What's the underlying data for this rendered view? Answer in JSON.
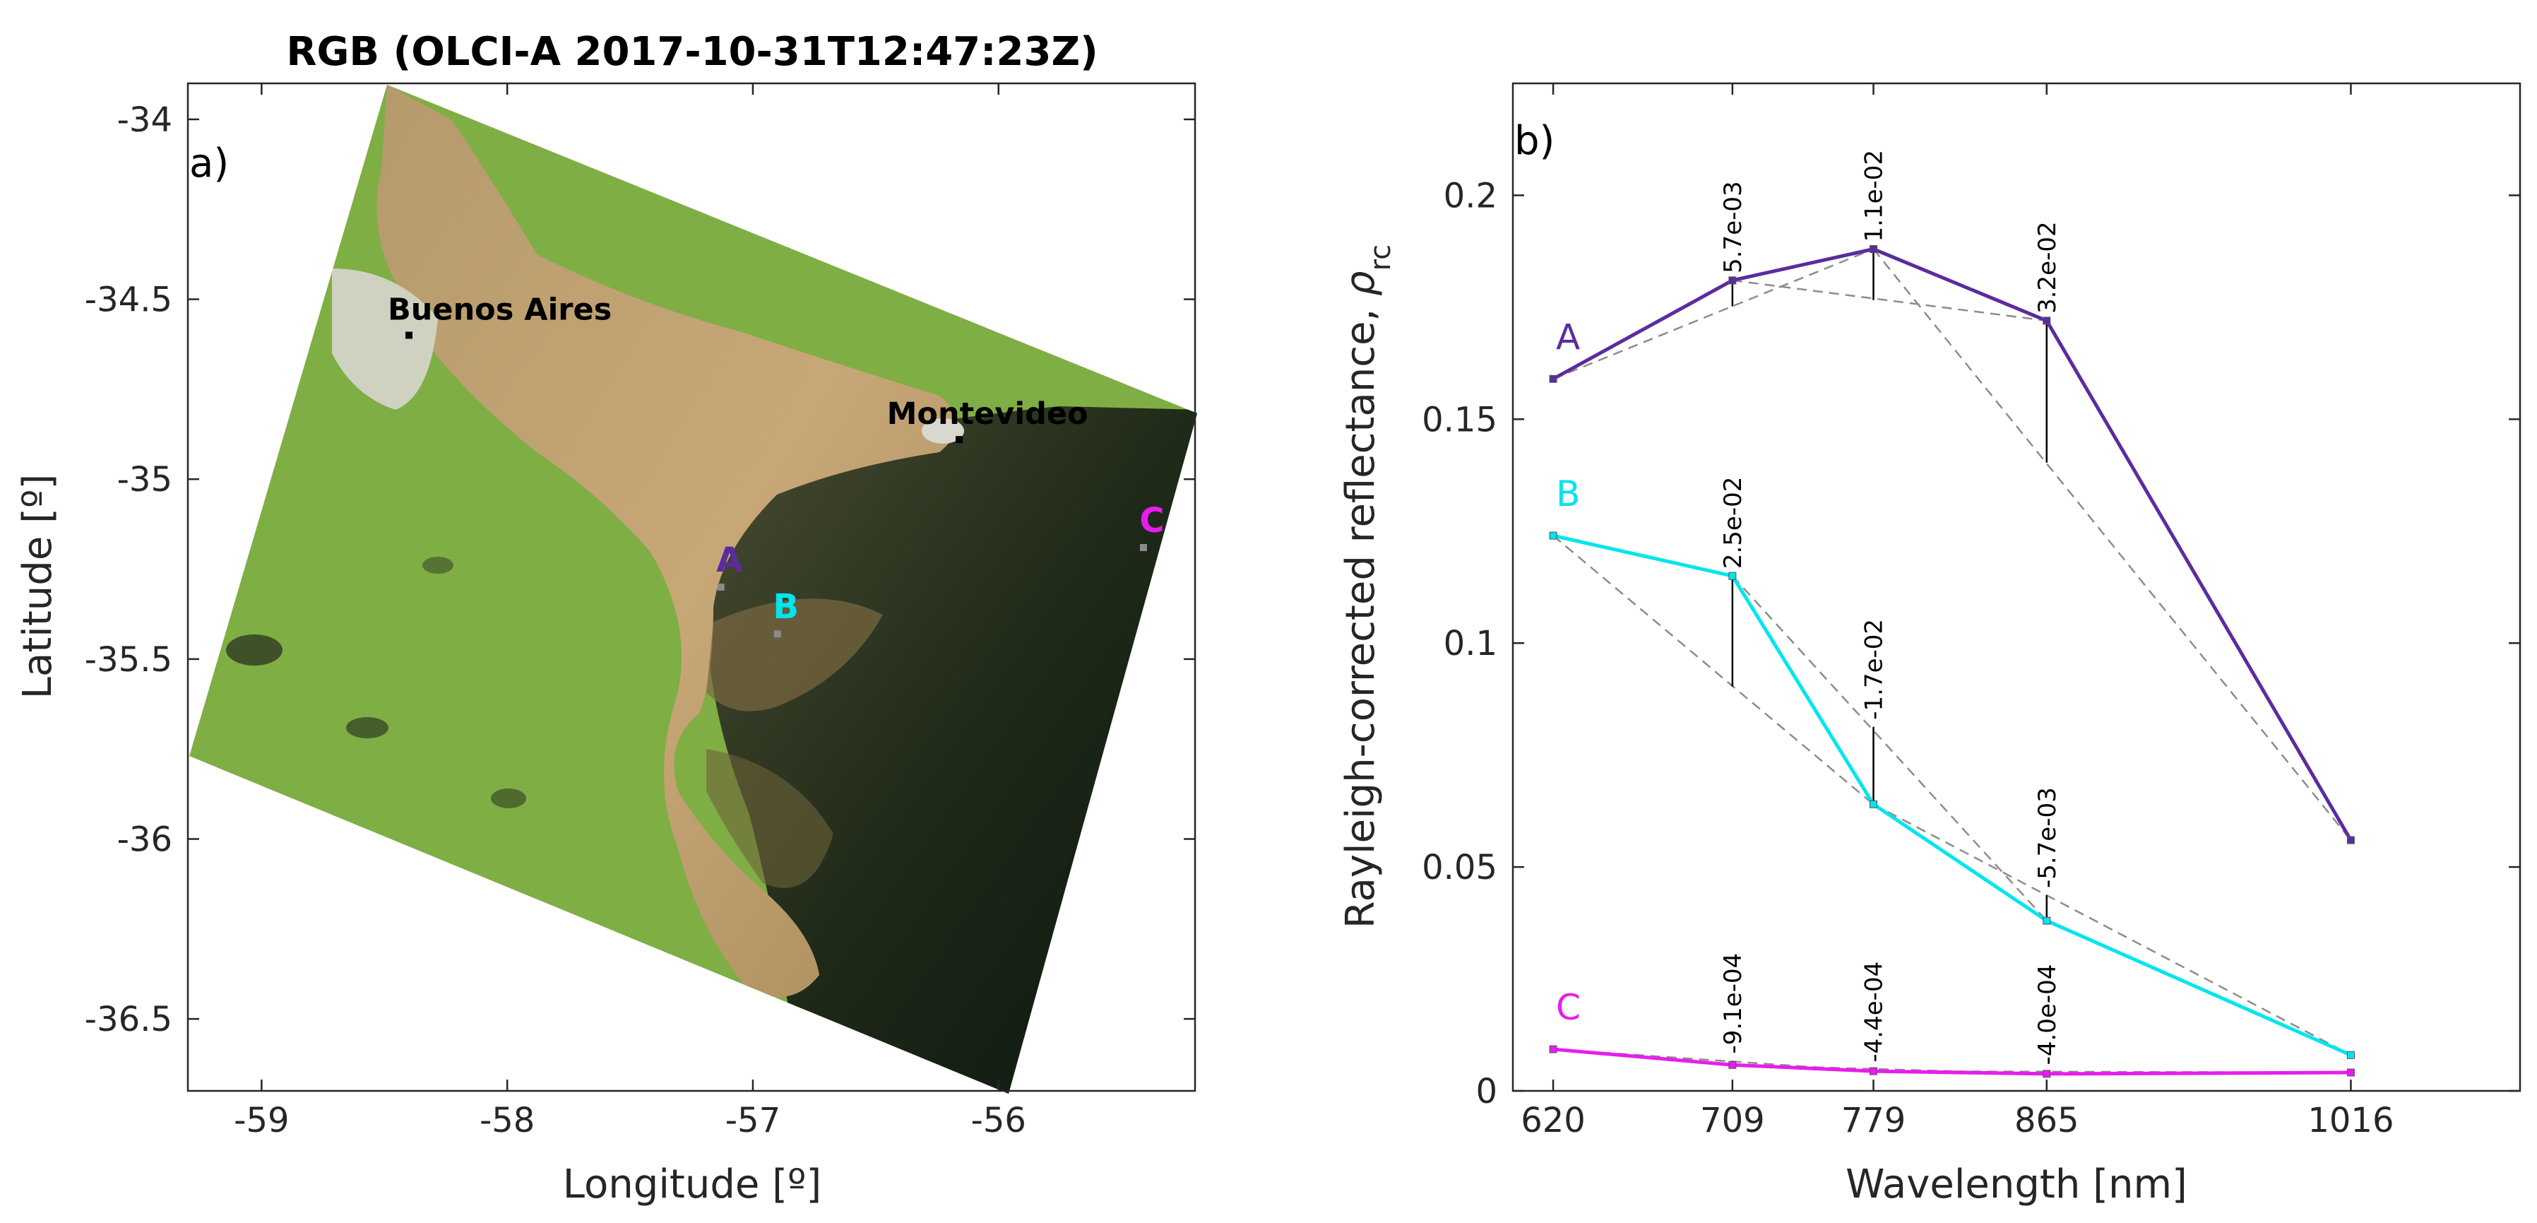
{
  "chart_data": [
    {
      "type": "map",
      "panel_label": "a)",
      "title": "RGB (OLCI-A 2017-10-31T12:47:23Z)",
      "xlabel": "Longitude [º]",
      "ylabel": "Latitude [º]",
      "xlim": [
        -59.3,
        -55.2
      ],
      "ylim": [
        -36.7,
        -33.9
      ],
      "xticks": [
        -59,
        -58,
        -57,
        -56
      ],
      "xtick_labels": [
        "-59",
        "-58",
        "-57",
        "-56"
      ],
      "yticks": [
        -34,
        -34.5,
        -35,
        -35.5,
        -36,
        -36.5
      ],
      "ytick_labels": [
        "-34",
        "-34.5",
        "-35",
        "-35.5",
        "-36",
        "-36.5"
      ],
      "cities": [
        {
          "name": "Buenos Aires",
          "lon": -58.4,
          "lat": -34.6
        },
        {
          "name": "Montevideo",
          "lon": -56.16,
          "lat": -34.89
        }
      ],
      "sites": [
        {
          "name": "A",
          "lon": -57.13,
          "lat": -35.3,
          "color": "#5b2c9e"
        },
        {
          "name": "B",
          "lon": -56.9,
          "lat": -35.43,
          "color": "#00e5ee"
        },
        {
          "name": "C",
          "lon": -55.41,
          "lat": -35.19,
          "color": "#e81cee"
        }
      ]
    },
    {
      "type": "line",
      "panel_label": "b)",
      "title": "",
      "xlabel": "Wavelength [nm]",
      "ylabel": "Rayleigh-corrected reflectance, ",
      "ylabel_symbol": "ρ",
      "ylabel_subscript": "rc",
      "categories": [
        "620",
        "709",
        "779",
        "865",
        "1016"
      ],
      "x": [
        620,
        709,
        779,
        865,
        1016
      ],
      "xlim": [
        600,
        1100
      ],
      "ylim": [
        0,
        0.225
      ],
      "yticks": [
        0,
        0.05,
        0.1,
        0.15,
        0.2
      ],
      "ytick_labels": [
        "0",
        "0.05",
        "0.1",
        "0.15",
        "0.2"
      ],
      "series": [
        {
          "name": "A",
          "color": "#5b2c9e",
          "values": [
            0.159,
            0.181,
            0.188,
            0.172,
            0.056
          ],
          "baselines": [
            null,
            0.1752,
            0.1766,
            0.1403,
            null
          ],
          "labels": [
            null,
            "5.7e-03",
            "1.1e-02",
            "3.2e-02",
            null
          ]
        },
        {
          "name": "B",
          "color": "#00e5ee",
          "values": [
            0.124,
            0.115,
            0.064,
            0.038,
            0.008
          ],
          "baselines": [
            null,
            0.0903,
            0.0813,
            0.0437,
            null
          ],
          "labels": [
            null,
            "2.5e-02",
            "-1.7e-02",
            "-5.7e-03",
            null
          ]
        },
        {
          "name": "C",
          "color": "#e81cee",
          "values": [
            0.0093,
            0.0058,
            0.0044,
            0.0038,
            0.0041
          ],
          "baselines": [
            null,
            0.0067,
            0.0048,
            0.0042,
            null
          ],
          "labels": [
            null,
            "-9.1e-04",
            "-4.4e-04",
            "-4.0e-04",
            null
          ]
        }
      ]
    }
  ]
}
